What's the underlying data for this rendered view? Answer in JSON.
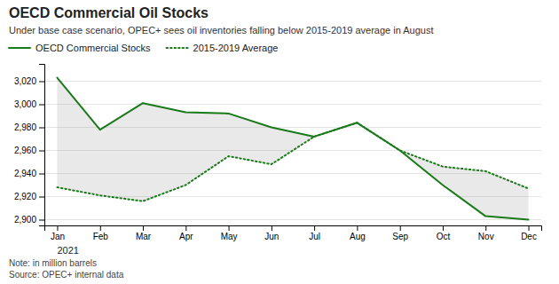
{
  "chart_data": {
    "type": "line",
    "title": "OECD Commercial Oil Stocks",
    "subtitle": "Under base case scenario, OPEC+ sees oil inventories falling below 2015-2019 average in August",
    "note": "Note: in million barrels\nSource: OPEC+ internal data",
    "annotations": [
      "2021"
    ],
    "categories": [
      "Jan",
      "Feb",
      "Mar",
      "Apr",
      "May",
      "Jun",
      "Jul",
      "Aug",
      "Sep",
      "Oct",
      "Nov",
      "Dec"
    ],
    "series": [
      {
        "name": "OECD Commercial Stocks",
        "color": "#1a7a1a",
        "line_style": "solid",
        "values": [
          3023,
          2978,
          3001,
          2993,
          2992,
          2980,
          2972,
          2984,
          2960,
          2930,
          2903,
          2900
        ]
      },
      {
        "name": "2015-2019 Average",
        "color": "#1a7a1a",
        "line_style": "dotted",
        "values": [
          2928,
          2921,
          2916,
          2930,
          2955,
          2948,
          2972,
          2984,
          2960,
          2946,
          2942,
          2927
        ]
      }
    ],
    "ylim": [
      2895,
      3035
    ],
    "yticks": [
      {
        "value": 2900,
        "label": "2,900"
      },
      {
        "value": 2920,
        "label": "2,920"
      },
      {
        "value": 2940,
        "label": "2,940"
      },
      {
        "value": 2960,
        "label": "2,960"
      },
      {
        "value": 2980,
        "label": "2,980"
      },
      {
        "value": 3000,
        "label": "3,000"
      },
      {
        "value": 3020,
        "label": "3,020"
      }
    ],
    "grid": true,
    "legend": "upper left"
  }
}
